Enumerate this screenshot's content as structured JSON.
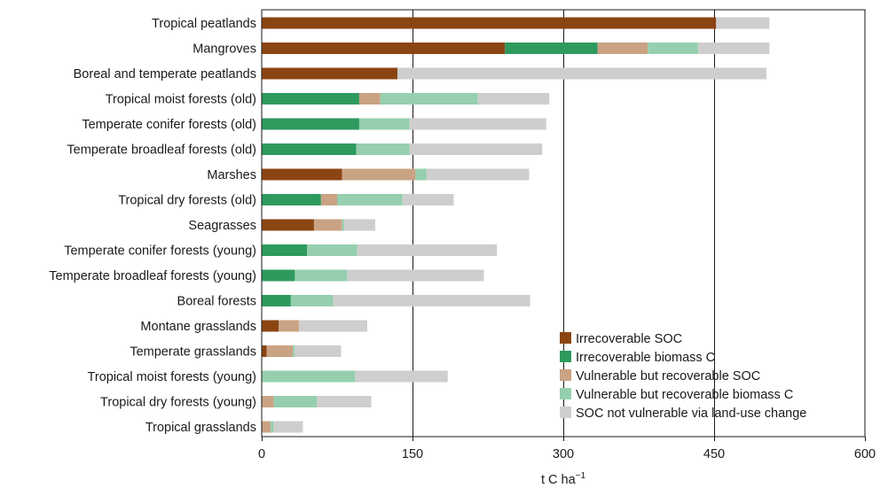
{
  "chart_data": {
    "type": "bar",
    "orientation": "horizontal",
    "stacked": true,
    "categories": [
      "Tropical peatlands",
      "Mangroves",
      "Boreal and temperate peatlands",
      "Tropical moist forests (old)",
      "Temperate conifer forests (old)",
      "Temperate broadleaf forests (old)",
      "Marshes",
      "Tropical dry forests (old)",
      "Seagrasses",
      "Temperate conifer forests (young)",
      "Temperate broadleaf forests (young)",
      "Boreal forests",
      "Montane grasslands",
      "Temperate grasslands",
      "Tropical moist forests (young)",
      "Tropical dry forests (young)",
      "Tropical grasslands"
    ],
    "series": [
      {
        "name": "Irrecoverable SOC",
        "color": "#8b4513",
        "values": [
          452,
          242,
          135,
          0,
          0,
          0,
          80,
          0,
          52,
          0,
          0,
          0,
          17,
          5,
          0,
          0,
          0
        ]
      },
      {
        "name": "Irrecoverable biomass C",
        "color": "#2e9a5e",
        "values": [
          0,
          92,
          0,
          97,
          97,
          94,
          0,
          59,
          0,
          45,
          33,
          29,
          0,
          0,
          0,
          0,
          0
        ]
      },
      {
        "name": "Vulnerable but recoverable SOC",
        "color": "#c9a383",
        "values": [
          0,
          50,
          0,
          21,
          0,
          0,
          73,
          16,
          28,
          0,
          0,
          0,
          20,
          26,
          0,
          12,
          9
        ]
      },
      {
        "name": "Vulnerable but recoverable biomass C",
        "color": "#95cfae",
        "values": [
          0,
          50,
          0,
          97,
          50,
          53,
          11,
          65,
          2,
          50,
          52,
          42,
          0,
          2,
          93,
          43,
          3
        ]
      },
      {
        "name": "SOC not vulnerable via land-use change",
        "color": "#cecece",
        "values": [
          53,
          71,
          367,
          71,
          136,
          132,
          102,
          51,
          31,
          139,
          136,
          196,
          68,
          46,
          92,
          54,
          29
        ]
      }
    ],
    "xlabel": "t C ha",
    "xlabel_superscript": "−1",
    "xlim": [
      0,
      600
    ],
    "xticks": [
      "0",
      "150",
      "300",
      "450",
      "600"
    ],
    "xtick_values": [
      0,
      150,
      300,
      450,
      600
    ],
    "gridlines_at": [
      150,
      300,
      450
    ],
    "legend_position": "bottom-right"
  }
}
